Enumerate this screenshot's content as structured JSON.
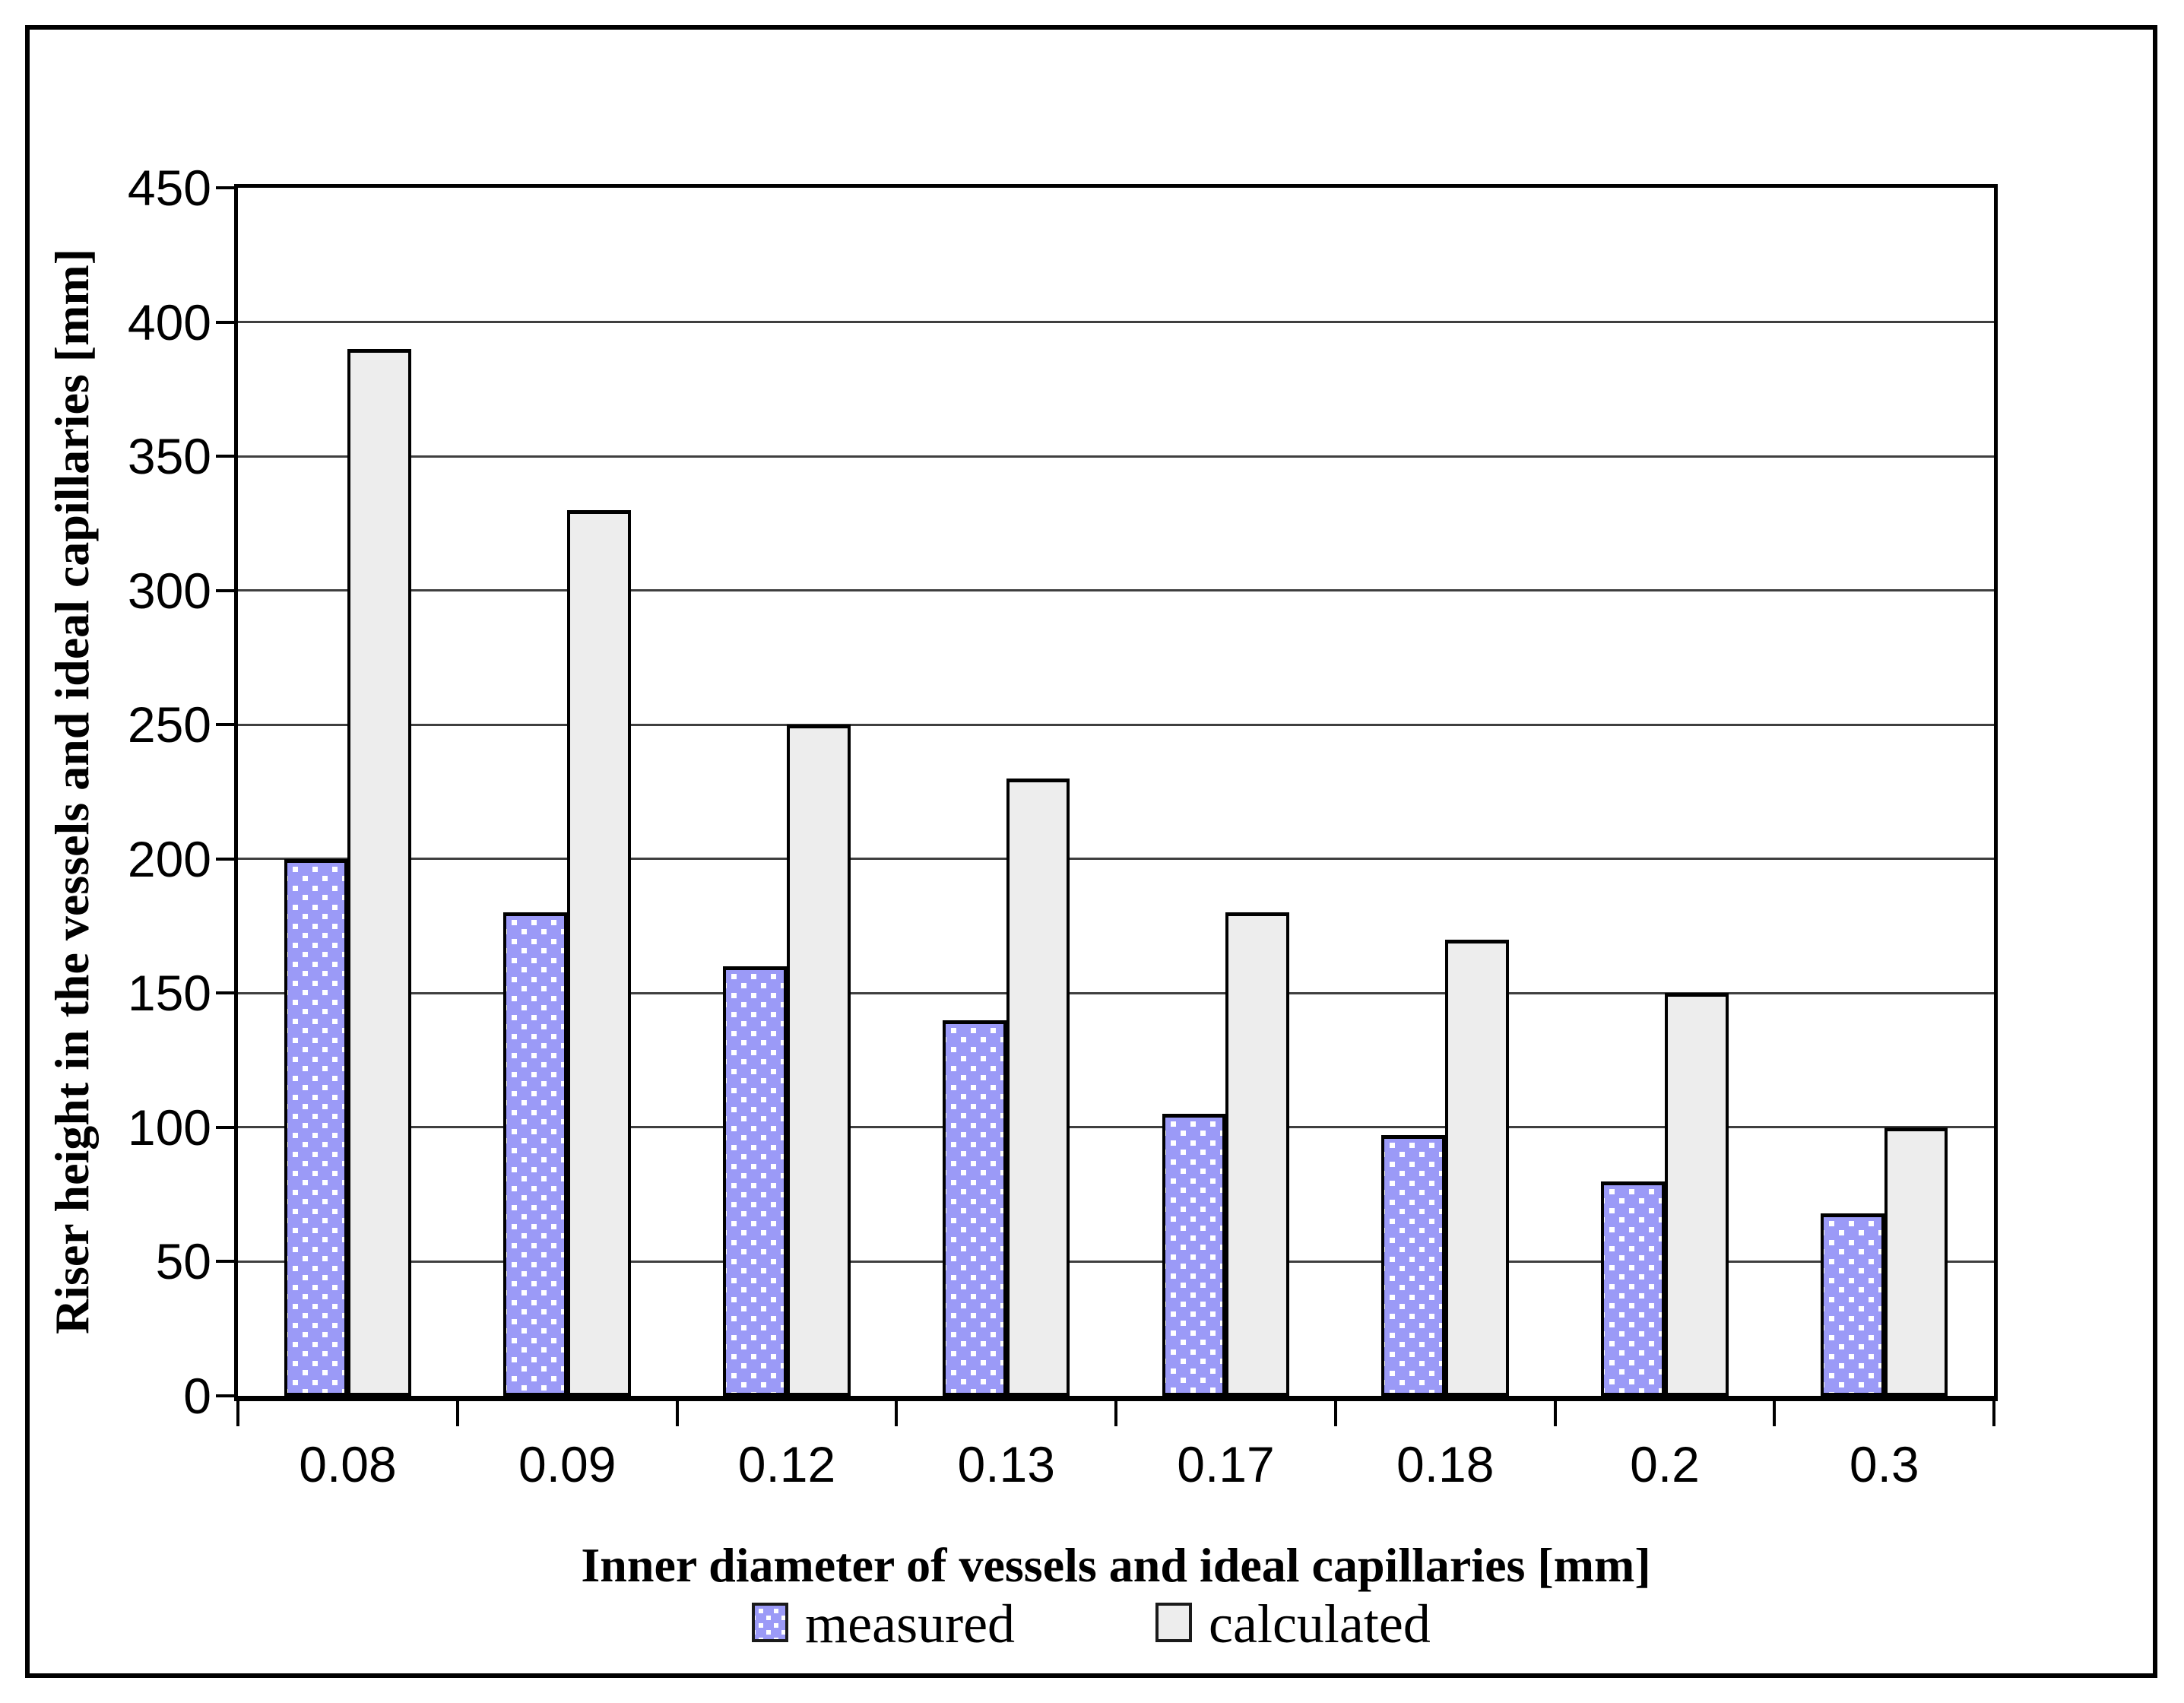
{
  "chart_data": {
    "type": "bar",
    "title": "",
    "xlabel": "Inner diameter of vessels and ideal capillaries [mm]",
    "ylabel": "Riser height in the vessels and ideal capillaries [mm]",
    "categories": [
      "0.08",
      "0.09",
      "0.12",
      "0.13",
      "0.17",
      "0.18",
      "0.2",
      "0.3"
    ],
    "series": [
      {
        "name": "measured",
        "values": [
          200,
          180,
          160,
          140,
          105,
          97,
          80,
          68
        ],
        "color": "#9b9af7",
        "pattern": "white-square-dots"
      },
      {
        "name": "calculated",
        "values": [
          390,
          330,
          250,
          230,
          180,
          170,
          150,
          100
        ],
        "color": "#ededed",
        "pattern": "solid"
      }
    ],
    "ylim": [
      0,
      450
    ],
    "yticks": [
      450,
      400,
      350,
      300,
      250,
      200,
      150,
      100,
      50,
      0
    ],
    "grid": true,
    "legend_position": "bottom",
    "legend": [
      {
        "label": "measured"
      },
      {
        "label": "calculated"
      }
    ],
    "colors": {
      "axis": "#000000",
      "gridline": "#3f3f3f",
      "background": "#ffffff",
      "measured_fill": "#9b9af7",
      "measured_dot": "#ffffff",
      "calculated_fill": "#ededed",
      "bar_edge": "#000000"
    }
  }
}
